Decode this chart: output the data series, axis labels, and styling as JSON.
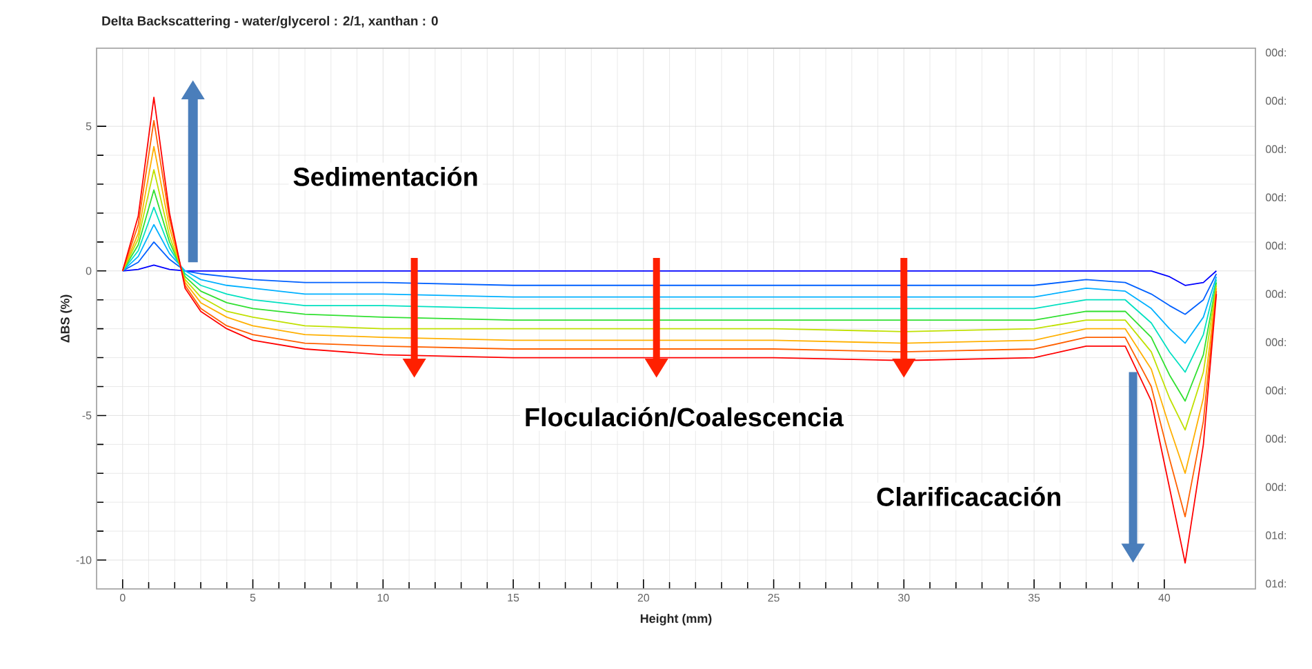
{
  "chart_data": {
    "type": "line",
    "title": "Delta Backscattering - water/glycerol : 2/1, xanthan : 0",
    "xlabel": "Height (mm)",
    "ylabel": "ΔBS (%)",
    "x": [
      0,
      0.6,
      1.2,
      1.8,
      2.4,
      3,
      4,
      5,
      7,
      10,
      15,
      20,
      25,
      30,
      35,
      37,
      38.5,
      39.5,
      40.2,
      40.8,
      41.5,
      42
    ],
    "series": [
      {
        "color": "#0000ff",
        "values": [
          0,
          0.05,
          0.2,
          0.05,
          0,
          0,
          0,
          0,
          0,
          0,
          0,
          0,
          0,
          0,
          0,
          0,
          0,
          0,
          -0.2,
          -0.5,
          -0.4,
          0
        ]
      },
      {
        "color": "#0060ff",
        "values": [
          0,
          0.3,
          1.0,
          0.4,
          0,
          -0.1,
          -0.2,
          -0.3,
          -0.4,
          -0.4,
          -0.5,
          -0.5,
          -0.5,
          -0.5,
          -0.5,
          -0.3,
          -0.4,
          -0.8,
          -1.2,
          -1.5,
          -1.0,
          -0.1
        ]
      },
      {
        "color": "#00b0ff",
        "values": [
          0,
          0.5,
          1.6,
          0.6,
          0,
          -0.3,
          -0.5,
          -0.6,
          -0.8,
          -0.8,
          -0.9,
          -0.9,
          -0.9,
          -0.9,
          -0.9,
          -0.6,
          -0.7,
          -1.3,
          -2.0,
          -2.5,
          -1.6,
          -0.2
        ]
      },
      {
        "color": "#00e0c0",
        "values": [
          0,
          0.7,
          2.2,
          0.8,
          -0.1,
          -0.5,
          -0.8,
          -1.0,
          -1.2,
          -1.2,
          -1.3,
          -1.3,
          -1.3,
          -1.3,
          -1.3,
          -1.0,
          -1.0,
          -1.8,
          -2.8,
          -3.5,
          -2.2,
          -0.3
        ]
      },
      {
        "color": "#30e030",
        "values": [
          0,
          0.9,
          2.8,
          1.0,
          -0.2,
          -0.7,
          -1.1,
          -1.3,
          -1.5,
          -1.6,
          -1.7,
          -1.7,
          -1.7,
          -1.7,
          -1.7,
          -1.4,
          -1.4,
          -2.3,
          -3.6,
          -4.5,
          -2.9,
          -0.4
        ]
      },
      {
        "color": "#c0e000",
        "values": [
          0,
          1.1,
          3.5,
          1.2,
          -0.3,
          -0.9,
          -1.4,
          -1.6,
          -1.9,
          -2.0,
          -2.0,
          -2.0,
          -2.0,
          -2.1,
          -2.0,
          -1.7,
          -1.7,
          -2.8,
          -4.4,
          -5.5,
          -3.5,
          -0.5
        ]
      },
      {
        "color": "#ffb000",
        "values": [
          0,
          1.3,
          4.3,
          1.5,
          -0.4,
          -1.1,
          -1.6,
          -1.9,
          -2.2,
          -2.3,
          -2.4,
          -2.4,
          -2.4,
          -2.5,
          -2.4,
          -2.0,
          -2.0,
          -3.4,
          -5.4,
          -7.0,
          -4.4,
          -0.6
        ]
      },
      {
        "color": "#ff6000",
        "values": [
          0,
          1.6,
          5.2,
          1.8,
          -0.5,
          -1.3,
          -1.9,
          -2.2,
          -2.5,
          -2.6,
          -2.7,
          -2.7,
          -2.7,
          -2.8,
          -2.7,
          -2.3,
          -2.3,
          -4.0,
          -6.5,
          -8.5,
          -5.2,
          -0.7
        ]
      },
      {
        "color": "#ff0000",
        "values": [
          0,
          1.9,
          6.0,
          2.0,
          -0.6,
          -1.4,
          -2.0,
          -2.4,
          -2.7,
          -2.9,
          -3.0,
          -3.0,
          -3.0,
          -3.1,
          -3.0,
          -2.6,
          -2.6,
          -4.5,
          -7.5,
          -10.1,
          -6.0,
          -0.8
        ]
      }
    ],
    "xlim": [
      -1,
      43.5
    ],
    "ylim": [
      -11,
      7.7
    ],
    "xticks": [
      0,
      5,
      10,
      15,
      20,
      25,
      30,
      35,
      40
    ],
    "yticks": [
      -10,
      -5,
      0,
      5
    ],
    "grid": true,
    "marker": "none",
    "line_style": "solid",
    "annotations": [
      "Sedimentación",
      "Floculación/Coalescencia",
      "Clarificacación",
      "00d:",
      "00d:",
      "00d:",
      "00d:",
      "00d:",
      "00d:",
      "00d:",
      "00d:",
      "00d:",
      "00d:",
      "01d:",
      "01d:"
    ]
  }
}
